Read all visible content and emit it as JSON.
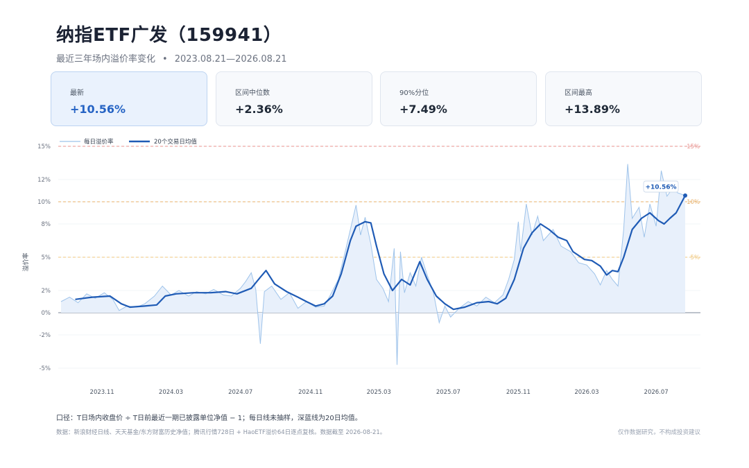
{
  "header": {
    "title": "纳指ETF广发（159941）",
    "subtitle": "最近三年场内溢价率变化",
    "separator": "•",
    "date_range": "2023.08.21—2026.08.21"
  },
  "cards": [
    {
      "label": "最新",
      "value": "+10.56%"
    },
    {
      "label": "区间中位数",
      "value": "+2.36%"
    },
    {
      "label": "90%分位",
      "value": "+7.49%"
    },
    {
      "label": "区间最高",
      "value": "+13.89%"
    }
  ],
  "colors": {
    "daily_line": "#9ec3ea",
    "ma_line": "#1f5bb5",
    "area_fill": "#e8f0fb",
    "ref15": "#e8928e",
    "ref10": "#e8b06a",
    "ref5": "#f0c77c"
  },
  "chart_data": {
    "type": "line",
    "ylabel": "溢价率",
    "ylim": [
      -5.5,
      15
    ],
    "yticks": [
      15,
      12,
      10,
      8,
      5,
      2,
      0,
      -2,
      -5
    ],
    "ytick_labels": [
      "15%",
      "12%",
      "10%",
      "8%",
      "5%",
      "2%",
      "0%",
      "-2%",
      "-5%"
    ],
    "xticks": [
      "2023-11-01",
      "2024-03-01",
      "2024-07-01",
      "2024-11-01",
      "2025-03-01",
      "2025-07-01",
      "2025-11-01",
      "2026-03-01",
      "2026-07-01"
    ],
    "xtick_labels": [
      "2023.11",
      "2024.03",
      "2024.07",
      "2024.11",
      "2025.03",
      "2025.07",
      "2025.11",
      "2026.03",
      "2026.07"
    ],
    "xlim": [
      "2023-08-21",
      "2026-08-21"
    ],
    "reference_lines": [
      {
        "value": 15,
        "label": "15%",
        "color": "#e8928e"
      },
      {
        "value": 10,
        "label": "10%",
        "color": "#e8b06a"
      },
      {
        "value": 5,
        "label": "5%",
        "color": "#f0c77c"
      }
    ],
    "latest_label": "+10.56%",
    "latest_value": 10.56,
    "legend_position": "top-left",
    "series": [
      {
        "name": "每日溢价率",
        "style": "thin",
        "points": [
          [
            "2023-08-21",
            1.0
          ],
          [
            "2023-09-05",
            1.4
          ],
          [
            "2023-09-20",
            0.9
          ],
          [
            "2023-10-05",
            1.7
          ],
          [
            "2023-10-20",
            1.3
          ],
          [
            "2023-11-05",
            1.8
          ],
          [
            "2023-11-20",
            1.2
          ],
          [
            "2023-12-01",
            0.2
          ],
          [
            "2023-12-15",
            0.6
          ],
          [
            "2024-01-01",
            0.5
          ],
          [
            "2024-01-15",
            0.8
          ],
          [
            "2024-02-01",
            1.5
          ],
          [
            "2024-02-15",
            2.4
          ],
          [
            "2024-03-01",
            1.6
          ],
          [
            "2024-03-15",
            2.0
          ],
          [
            "2024-04-01",
            1.5
          ],
          [
            "2024-04-15",
            1.9
          ],
          [
            "2024-05-01",
            1.7
          ],
          [
            "2024-05-15",
            2.1
          ],
          [
            "2024-06-01",
            1.6
          ],
          [
            "2024-06-15",
            1.5
          ],
          [
            "2024-07-01",
            2.2
          ],
          [
            "2024-07-10",
            2.8
          ],
          [
            "2024-07-20",
            3.6
          ],
          [
            "2024-07-28",
            2.1
          ],
          [
            "2024-08-05",
            -2.8
          ],
          [
            "2024-08-12",
            1.9
          ],
          [
            "2024-08-25",
            2.4
          ],
          [
            "2024-09-10",
            1.2
          ],
          [
            "2024-09-25",
            1.8
          ],
          [
            "2024-10-10",
            0.4
          ],
          [
            "2024-10-25",
            1.0
          ],
          [
            "2024-11-10",
            0.5
          ],
          [
            "2024-11-25",
            0.6
          ],
          [
            "2024-12-05",
            1.5
          ],
          [
            "2024-12-20",
            3.0
          ],
          [
            "2025-01-01",
            5.5
          ],
          [
            "2025-01-10",
            7.5
          ],
          [
            "2025-01-20",
            9.7
          ],
          [
            "2025-01-28",
            7.0
          ],
          [
            "2025-02-05",
            8.6
          ],
          [
            "2025-02-15",
            6.2
          ],
          [
            "2025-02-25",
            3.0
          ],
          [
            "2025-03-08",
            2.2
          ],
          [
            "2025-03-18",
            1.0
          ],
          [
            "2025-03-28",
            5.8
          ],
          [
            "2025-04-02",
            -4.7
          ],
          [
            "2025-04-08",
            5.5
          ],
          [
            "2025-04-15",
            1.8
          ],
          [
            "2025-04-25",
            3.6
          ],
          [
            "2025-05-05",
            2.4
          ],
          [
            "2025-05-15",
            5.0
          ],
          [
            "2025-05-25",
            3.4
          ],
          [
            "2025-06-05",
            1.8
          ],
          [
            "2025-06-15",
            -0.9
          ],
          [
            "2025-06-25",
            0.6
          ],
          [
            "2025-07-05",
            -0.4
          ],
          [
            "2025-07-20",
            0.4
          ],
          [
            "2025-08-05",
            1.0
          ],
          [
            "2025-08-20",
            0.6
          ],
          [
            "2025-09-05",
            1.4
          ],
          [
            "2025-09-20",
            0.9
          ],
          [
            "2025-10-05",
            1.6
          ],
          [
            "2025-10-15",
            3.0
          ],
          [
            "2025-10-25",
            4.8
          ],
          [
            "2025-11-01",
            8.2
          ],
          [
            "2025-11-05",
            5.5
          ],
          [
            "2025-11-15",
            9.8
          ],
          [
            "2025-11-25",
            7.0
          ],
          [
            "2025-12-05",
            8.7
          ],
          [
            "2025-12-15",
            6.5
          ],
          [
            "2026-01-01",
            7.5
          ],
          [
            "2026-01-15",
            6.0
          ],
          [
            "2026-02-01",
            5.5
          ],
          [
            "2026-02-15",
            4.5
          ],
          [
            "2026-03-01",
            4.3
          ],
          [
            "2026-03-15",
            3.5
          ],
          [
            "2026-03-25",
            2.5
          ],
          [
            "2026-04-05",
            3.8
          ],
          [
            "2026-04-15",
            3.0
          ],
          [
            "2026-04-25",
            2.4
          ],
          [
            "2026-05-05",
            7.5
          ],
          [
            "2026-05-12",
            13.4
          ],
          [
            "2026-05-20",
            8.5
          ],
          [
            "2026-06-01",
            9.5
          ],
          [
            "2026-06-10",
            6.8
          ],
          [
            "2026-06-20",
            9.8
          ],
          [
            "2026-07-01",
            7.8
          ],
          [
            "2026-07-10",
            12.8
          ],
          [
            "2026-07-20",
            10.5
          ],
          [
            "2026-07-30",
            11.2
          ],
          [
            "2026-08-08",
            10.8
          ],
          [
            "2026-08-21",
            10.56
          ]
        ]
      },
      {
        "name": "20个交易日均值",
        "style": "thick",
        "points": [
          [
            "2023-09-15",
            1.2
          ],
          [
            "2023-10-15",
            1.4
          ],
          [
            "2023-11-15",
            1.5
          ],
          [
            "2023-12-05",
            0.8
          ],
          [
            "2023-12-20",
            0.5
          ],
          [
            "2024-01-15",
            0.6
          ],
          [
            "2024-02-05",
            0.7
          ],
          [
            "2024-02-20",
            1.5
          ],
          [
            "2024-03-10",
            1.7
          ],
          [
            "2024-04-10",
            1.8
          ],
          [
            "2024-05-10",
            1.8
          ],
          [
            "2024-06-05",
            1.9
          ],
          [
            "2024-06-25",
            1.7
          ],
          [
            "2024-07-20",
            2.2
          ],
          [
            "2024-08-05",
            3.2
          ],
          [
            "2024-08-15",
            3.8
          ],
          [
            "2024-08-30",
            2.6
          ],
          [
            "2024-09-20",
            1.9
          ],
          [
            "2024-10-10",
            1.4
          ],
          [
            "2024-10-25",
            1.0
          ],
          [
            "2024-11-10",
            0.6
          ],
          [
            "2024-11-25",
            0.8
          ],
          [
            "2024-12-10",
            1.5
          ],
          [
            "2024-12-25",
            3.5
          ],
          [
            "2025-01-10",
            6.5
          ],
          [
            "2025-01-20",
            7.8
          ],
          [
            "2025-02-05",
            8.2
          ],
          [
            "2025-02-15",
            8.1
          ],
          [
            "2025-02-25",
            6.0
          ],
          [
            "2025-03-10",
            3.5
          ],
          [
            "2025-03-25",
            2.0
          ],
          [
            "2025-04-10",
            3.0
          ],
          [
            "2025-04-25",
            2.5
          ],
          [
            "2025-05-12",
            4.6
          ],
          [
            "2025-05-25",
            3.0
          ],
          [
            "2025-06-10",
            1.5
          ],
          [
            "2025-06-25",
            0.8
          ],
          [
            "2025-07-10",
            0.3
          ],
          [
            "2025-07-30",
            0.5
          ],
          [
            "2025-08-20",
            0.9
          ],
          [
            "2025-09-10",
            1.0
          ],
          [
            "2025-09-25",
            0.8
          ],
          [
            "2025-10-10",
            1.3
          ],
          [
            "2025-10-25",
            3.0
          ],
          [
            "2025-11-10",
            5.8
          ],
          [
            "2025-11-25",
            7.2
          ],
          [
            "2025-12-10",
            8.0
          ],
          [
            "2025-12-25",
            7.5
          ],
          [
            "2026-01-10",
            6.8
          ],
          [
            "2026-01-25",
            6.5
          ],
          [
            "2026-02-05",
            5.5
          ],
          [
            "2026-02-25",
            4.8
          ],
          [
            "2026-03-10",
            4.7
          ],
          [
            "2026-03-25",
            4.2
          ],
          [
            "2026-04-05",
            3.4
          ],
          [
            "2026-04-15",
            3.8
          ],
          [
            "2026-04-25",
            3.7
          ],
          [
            "2026-05-05",
            5.0
          ],
          [
            "2026-05-20",
            7.5
          ],
          [
            "2026-06-05",
            8.5
          ],
          [
            "2026-06-20",
            9.0
          ],
          [
            "2026-07-05",
            8.3
          ],
          [
            "2026-07-15",
            8.0
          ],
          [
            "2026-07-25",
            8.5
          ],
          [
            "2026-08-05",
            9.0
          ],
          [
            "2026-08-21",
            10.56
          ]
        ]
      }
    ]
  },
  "footer": {
    "note": "口径：T日场内收盘价 ÷ T日前最近一期已披露单位净值 − 1；每日线未抽样，深蓝线为20日均值。",
    "source": "数据：新浪财经日线、天天基金/东方财富历史净值；腾讯行情728日 + HaoETF溢价64日逐点复核。数据截至 2026-08-21。",
    "disclaimer": "仅作数据研究，不构成投资建议"
  }
}
